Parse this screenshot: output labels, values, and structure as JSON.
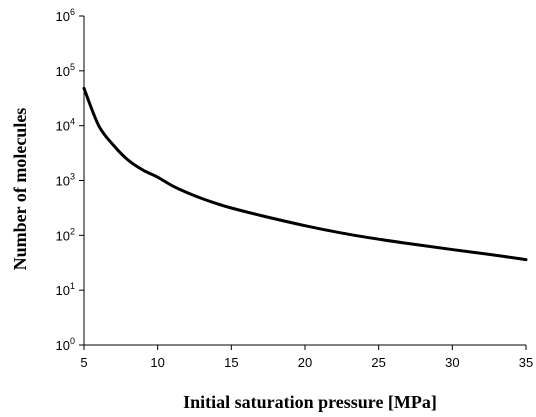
{
  "chart_data": {
    "type": "line",
    "title": "",
    "xlabel": "Initial saturation pressure [MPa]",
    "ylabel": "Number of molecules",
    "xlim": [
      5,
      35
    ],
    "ylim": [
      1,
      1000000
    ],
    "yscale": "log",
    "grid": false,
    "legend": "none",
    "x_ticks": [
      5,
      10,
      15,
      20,
      25,
      30,
      35
    ],
    "y_ticks": [
      {
        "base": "10",
        "exp": "0",
        "value": 1
      },
      {
        "base": "10",
        "exp": "1",
        "value": 10
      },
      {
        "base": "10",
        "exp": "2",
        "value": 100
      },
      {
        "base": "10",
        "exp": "3",
        "value": 1000
      },
      {
        "base": "10",
        "exp": "4",
        "value": 10000
      },
      {
        "base": "10",
        "exp": "5",
        "value": 100000
      },
      {
        "base": "10",
        "exp": "6",
        "value": 1000000
      }
    ],
    "series": [
      {
        "color": "#000000",
        "x": [
          5,
          6,
          7,
          8,
          9,
          10,
          11,
          12,
          13,
          14,
          15,
          17,
          20,
          22.5,
          25,
          27.5,
          30,
          32.5,
          35
        ],
        "y": [
          48000,
          10000,
          4400,
          2350,
          1550,
          1150,
          800,
          600,
          470,
          380,
          315,
          230,
          150,
          110,
          85,
          68,
          55,
          45,
          36
        ]
      }
    ]
  }
}
